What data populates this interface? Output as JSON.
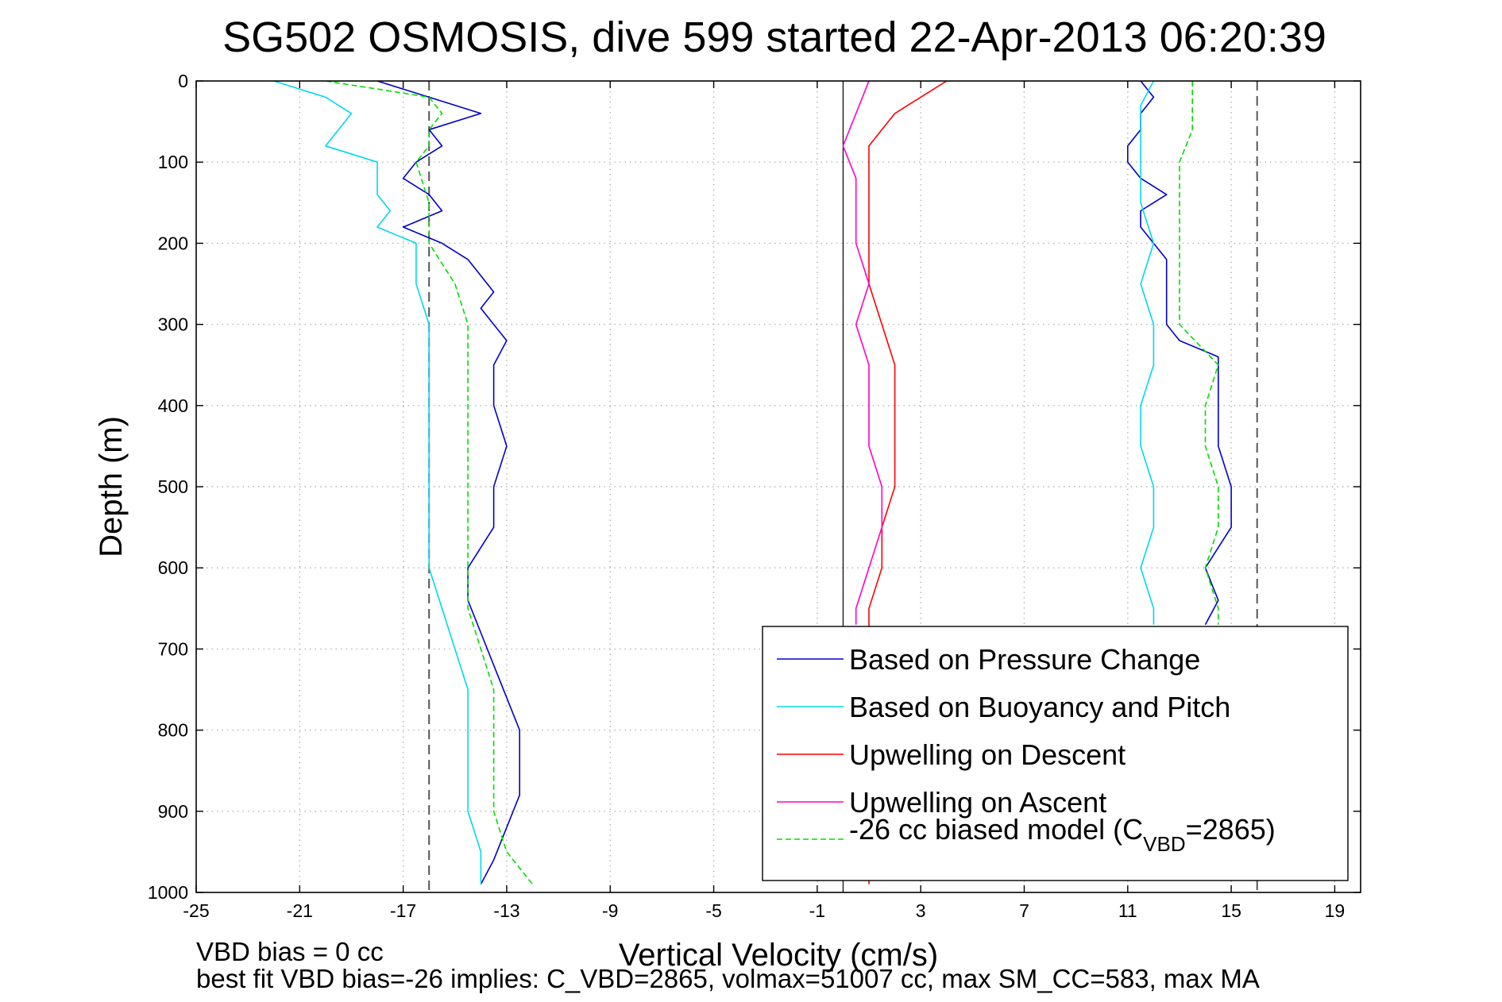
{
  "chart_data": {
    "type": "line",
    "title": "SG502 OSMOSIS, dive 599 started 22-Apr-2013 06:20:39",
    "xlabel": "Vertical Velocity (cm/s)",
    "ylabel": "Depth (m)",
    "xlim": [
      -25,
      20
    ],
    "ylim": [
      1000,
      0
    ],
    "y_axis_inverted": true,
    "xticks": [
      -25,
      -21,
      -17,
      -13,
      -9,
      -5,
      -1,
      3,
      7,
      11,
      15,
      19
    ],
    "yticks": [
      0,
      100,
      200,
      300,
      400,
      500,
      600,
      700,
      800,
      900,
      1000
    ],
    "grid": true,
    "legend_position": "lower-right",
    "reference_lines": [
      {
        "x": -16,
        "style": "dashed",
        "color": "#555555"
      },
      {
        "x": 16,
        "style": "dashed",
        "color": "#555555"
      },
      {
        "x": 0,
        "style": "solid",
        "color": "#000000"
      }
    ],
    "series": [
      {
        "name": "Based on Pressure Change",
        "color": "#0000cc",
        "style": "solid",
        "profiles": [
          {
            "depth": [
              0,
              20,
              40,
              60,
              80,
              100,
              120,
              140,
              160,
              180,
              200,
              220,
              240,
              260,
              280,
              300,
              320,
              350,
              400,
              450,
              500,
              550,
              600,
              640,
              680,
              720,
              760,
              800,
              840,
              880,
              920,
              960,
              990
            ],
            "velocity": [
              -18,
              -16,
              -14,
              -16,
              -15.5,
              -16.5,
              -17,
              -16,
              -15.5,
              -17,
              -15.5,
              -14.5,
              -14,
              -13.5,
              -14,
              -13.5,
              -13,
              -13.5,
              -13.5,
              -13,
              -13.5,
              -13.5,
              -14.5,
              -14.5,
              -14,
              -13.5,
              -13,
              -12.5,
              -12.5,
              -12.5,
              -13,
              -13.5,
              -14
            ]
          },
          {
            "depth": [
              0,
              20,
              40,
              60,
              80,
              100,
              120,
              140,
              160,
              180,
              200,
              220,
              240,
              260,
              280,
              300,
              320,
              340,
              360,
              400,
              450,
              500,
              550,
              600,
              640,
              670
            ],
            "velocity": [
              11.5,
              12,
              11.5,
              11.5,
              11,
              11,
              11.5,
              12.5,
              11.5,
              11.5,
              12,
              12.5,
              12.5,
              12.5,
              12.5,
              12.5,
              13,
              14.5,
              14.5,
              14.5,
              14.5,
              15,
              15,
              14,
              14.5,
              14
            ]
          }
        ]
      },
      {
        "name": "Based on Buoyancy and Pitch",
        "color": "#00d8ee",
        "style": "solid",
        "profiles": [
          {
            "depth": [
              0,
              20,
              40,
              60,
              80,
              100,
              120,
              140,
              160,
              180,
              200,
              250,
              300,
              350,
              400,
              450,
              500,
              550,
              600,
              650,
              700,
              750,
              800,
              850,
              900,
              950,
              990
            ],
            "velocity": [
              -22,
              -20,
              -19,
              -19.5,
              -20,
              -18,
              -18,
              -18,
              -17.5,
              -18,
              -16.5,
              -16.5,
              -16,
              -16,
              -16,
              -16,
              -16,
              -16,
              -16,
              -15.5,
              -15,
              -14.5,
              -14.5,
              -14.5,
              -14.5,
              -14,
              -14
            ]
          },
          {
            "depth": [
              0,
              30,
              60,
              100,
              150,
              200,
              250,
              300,
              350,
              400,
              450,
              500,
              550,
              600,
              650,
              670
            ],
            "velocity": [
              12,
              11.5,
              11.5,
              11.5,
              11.5,
              12,
              11.5,
              12,
              12,
              11.5,
              11.5,
              12,
              12,
              11.5,
              12,
              12
            ]
          }
        ]
      },
      {
        "name": "Upwelling on Descent",
        "color": "#ff0000",
        "style": "solid",
        "profiles": [
          {
            "depth": [
              0,
              20,
              40,
              60,
              80,
              100,
              150,
              200,
              250,
              300,
              350,
              400,
              450,
              500,
              550,
              600,
              650,
              700,
              750,
              800,
              850,
              900,
              950,
              990
            ],
            "velocity": [
              4,
              3,
              2,
              1.5,
              1,
              1,
              1,
              1,
              1,
              1.5,
              2,
              2,
              2,
              2,
              1.5,
              1.5,
              1,
              1,
              1,
              1,
              1,
              1,
              1,
              1
            ]
          }
        ]
      },
      {
        "name": "Upwelling on Ascent",
        "color": "#ff00cc",
        "style": "solid",
        "profiles": [
          {
            "depth": [
              0,
              40,
              80,
              120,
              160,
              200,
              250,
              300,
              350,
              400,
              450,
              500,
              550,
              600,
              650,
              670
            ],
            "velocity": [
              1,
              0.5,
              0,
              0.5,
              0.5,
              0.5,
              1,
              0.5,
              1,
              1,
              1,
              1.5,
              1.5,
              1,
              0.5,
              0.5
            ]
          }
        ]
      },
      {
        "name": "-26 cc biased model (C",
        "name_sub": "VBD",
        "name_tail": "=2865)",
        "color": "#00dd00",
        "style": "dashed",
        "profiles": [
          {
            "depth": [
              0,
              20,
              40,
              60,
              80,
              100,
              150,
              200,
              250,
              300,
              350,
              400,
              450,
              500,
              550,
              600,
              650,
              700,
              750,
              800,
              850,
              900,
              950,
              990
            ],
            "velocity": [
              -20,
              -16,
              -15.5,
              -16,
              -16,
              -16.5,
              -16,
              -16,
              -15,
              -14.5,
              -14.5,
              -14.5,
              -14.5,
              -14.5,
              -14.5,
              -14.5,
              -14.5,
              -14,
              -13.5,
              -13.5,
              -13.5,
              -13.5,
              -13,
              -12
            ]
          },
          {
            "depth": [
              0,
              30,
              60,
              100,
              150,
              200,
              250,
              300,
              350,
              400,
              450,
              500,
              550,
              600,
              650,
              670
            ],
            "velocity": [
              13.5,
              13.5,
              13.5,
              13,
              13,
              13,
              13,
              13,
              14.5,
              14,
              14,
              14.5,
              14.5,
              14,
              14.5,
              14.5
            ]
          }
        ]
      }
    ]
  },
  "footer": {
    "line1": "VBD bias = 0 cc",
    "line2": "best fit VBD bias=-26 implies: C_VBD=2865, volmax=51007 cc, max SM_CC=583, max MA"
  }
}
